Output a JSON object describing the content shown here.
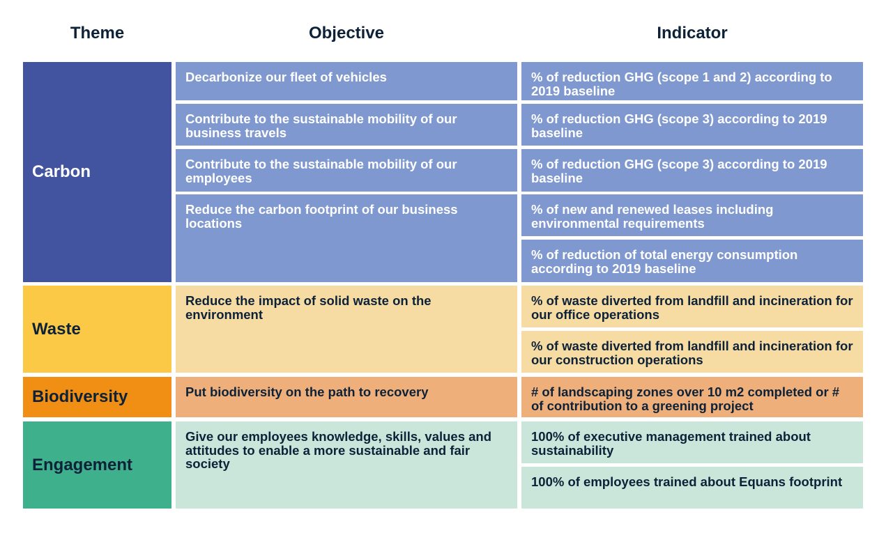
{
  "headers": {
    "theme": "Theme",
    "objective": "Objective",
    "indicator": "Indicator"
  },
  "colors": {
    "carbon_theme": "#4253a0",
    "carbon_cells": "#7f98cf",
    "waste_theme": "#fbc945",
    "waste_cells": "#f6dba3",
    "biodiversity_theme": "#f08f14",
    "biodiversity_cells": "#eeaf7b",
    "engagement_theme": "#3eb08c",
    "engagement_cells": "#cae5d9",
    "header_text": "#0d2238"
  },
  "carbon": {
    "theme": "Carbon",
    "objectives": [
      "Decarbonize our fleet of vehicles",
      "Contribute to the sustainable mobility of our business travels",
      "Contribute to the sustainable mobility of our employees",
      "Reduce the carbon footprint of our business locations"
    ],
    "indicators": [
      "% of reduction GHG (scope 1 and 2) according to 2019 baseline",
      "% of reduction GHG (scope 3) according to 2019 baseline",
      "% of reduction GHG (scope 3) according to 2019 baseline",
      "% of new and renewed leases including environmental requirements",
      "% of reduction of total energy consumption according to 2019 baseline"
    ]
  },
  "waste": {
    "theme": "Waste",
    "objectives": [
      "Reduce the impact of solid waste on the environment"
    ],
    "indicators": [
      "% of waste diverted from landfill and incineration for our office operations",
      "% of waste diverted from landfill and incineration for our construction operations"
    ]
  },
  "biodiversity": {
    "theme": "Biodiversity",
    "objectives": [
      "Put biodiversity on the path to recovery"
    ],
    "indicators": [
      "# of landscaping zones over 10 m2 completed or # of contribution to a greening project"
    ]
  },
  "engagement": {
    "theme": "Engagement",
    "objectives": [
      "Give our employees knowledge, skills, values and attitudes to enable a more sustainable and fair society"
    ],
    "indicators": [
      "100% of executive management trained about sustainability",
      "100% of employees trained about Equans footprint"
    ]
  }
}
